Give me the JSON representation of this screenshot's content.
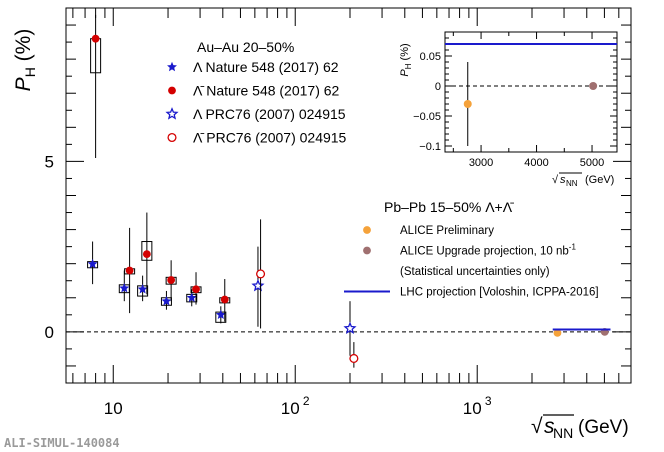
{
  "chart_data": {
    "type": "scatter",
    "x_scale": "log",
    "xlabel": "√s_NN (GeV)",
    "ylabel": "P_H (%)",
    "xlim": [
      5.5,
      7000
    ],
    "ylim": [
      -1.5,
      9.5
    ],
    "x_ticks": [
      {
        "value": 10,
        "label": "10"
      },
      {
        "value": 100,
        "label": "10",
        "sup": "2"
      },
      {
        "value": 1000,
        "label": "10",
        "sup": "3"
      }
    ],
    "y_ticks": [
      {
        "value": 0,
        "label": "0"
      },
      {
        "value": 5,
        "label": "5"
      }
    ],
    "zero_line": true,
    "legend_title": "Au–Au 20–50%",
    "legend_entries": [
      {
        "text": "Λ Nature 548 (2017) 62",
        "marker": "star-filled",
        "color": "#1a1acc"
      },
      {
        "text": "Λ̄ Nature 548 (2017) 62",
        "marker": "circle-filled",
        "color": "#d40000"
      },
      {
        "text": "Λ PRC76 (2007) 024915",
        "marker": "star-open",
        "color": "#1a1acc"
      },
      {
        "text": "Λ̄ PRC76 (2007) 024915",
        "marker": "circle-open",
        "color": "#d40000"
      }
    ],
    "legend2_title": "Pb–Pb 15–50% Λ+Λ̄",
    "legend2_entries": [
      {
        "text": "ALICE Preliminary",
        "marker": "circle-filled",
        "color": "#f5a23a"
      },
      {
        "text": "ALICE Upgrade projection, 10 nb",
        "sup": "-1",
        "marker": "circle-filled",
        "color": "#a07070"
      },
      {
        "text": "(Statistical uncertainties only)",
        "marker": "none"
      },
      {
        "text": "LHC projection [Voloshin, ICPPA-2016]",
        "marker": "line",
        "color": "#1a1acc"
      }
    ],
    "series": [
      {
        "name": "Λ Nature 548 (2017) 62",
        "marker": "star-filled",
        "color": "#1a1acc",
        "points": [
          {
            "x": 7.7,
            "y": 1.99,
            "lo": 1.4,
            "hi": 2.65,
            "syslo": 1.88,
            "syshi": 2.06
          },
          {
            "x": 11.5,
            "y": 1.28,
            "lo": 0.9,
            "hi": 1.8,
            "syslo": 1.15,
            "syshi": 1.38
          },
          {
            "x": 14.5,
            "y": 1.25,
            "lo": 0.9,
            "hi": 1.65,
            "syslo": 1.05,
            "syshi": 1.35
          },
          {
            "x": 19.6,
            "y": 0.9,
            "lo": 0.65,
            "hi": 1.2,
            "syslo": 0.78,
            "syshi": 1.0
          },
          {
            "x": 27,
            "y": 1.0,
            "lo": 0.75,
            "hi": 1.25,
            "syslo": 0.88,
            "syshi": 1.1
          },
          {
            "x": 39,
            "y": 0.5,
            "lo": 0.25,
            "hi": 0.75,
            "syslo": 0.28,
            "syshi": 0.58
          }
        ]
      },
      {
        "name": "Λ̄ Nature 548 (2017) 62",
        "marker": "circle-filled",
        "color": "#d40000",
        "points": [
          {
            "x": 8.0,
            "y": 8.6,
            "lo": 5.1,
            "hi": 9.3,
            "syslo": 7.6,
            "syshi": 8.6
          },
          {
            "x": 12.3,
            "y": 1.8,
            "lo": 0.55,
            "hi": 3.05,
            "syslo": 1.7,
            "syshi": 1.85
          },
          {
            "x": 15.3,
            "y": 2.28,
            "lo": 1.1,
            "hi": 3.5,
            "syslo": 2.1,
            "syshi": 2.65
          },
          {
            "x": 20.8,
            "y": 1.52,
            "lo": 0.9,
            "hi": 2.1,
            "syslo": 1.4,
            "syshi": 1.6
          },
          {
            "x": 28.5,
            "y": 1.25,
            "lo": 0.8,
            "hi": 1.75,
            "syslo": 1.15,
            "syshi": 1.32
          },
          {
            "x": 41,
            "y": 0.95,
            "lo": 0.3,
            "hi": 1.55,
            "syslo": 0.85,
            "syshi": 1.0
          }
        ]
      },
      {
        "name": "Λ PRC76 (2007) 024915",
        "marker": "star-open",
        "color": "#1a1acc",
        "points": [
          {
            "x": 62.4,
            "y": 1.35,
            "lo": 0.15,
            "hi": 2.5
          },
          {
            "x": 200,
            "y": 0.1,
            "lo": -0.7,
            "hi": 0.9
          }
        ]
      },
      {
        "name": "Λ̄ PRC76 (2007) 024915",
        "marker": "circle-open",
        "color": "#d40000",
        "points": [
          {
            "x": 64.5,
            "y": 1.7,
            "lo": 0.1,
            "hi": 3.3
          },
          {
            "x": 210,
            "y": -0.78,
            "lo": -1.05,
            "hi": -0.3
          }
        ]
      },
      {
        "name": "ALICE Preliminary",
        "marker": "circle-filled",
        "color": "#f5a23a",
        "points": [
          {
            "x": 2760,
            "y": -0.03
          }
        ]
      },
      {
        "name": "ALICE Upgrade projection",
        "marker": "circle-filled",
        "color": "#a07070",
        "points": [
          {
            "x": 5020,
            "y": 0.0
          }
        ]
      },
      {
        "name": "LHC projection [Voloshin, ICPPA-2016]",
        "marker": "line",
        "color": "#1a1acc",
        "segment": {
          "x1": 2600,
          "x2": 5400,
          "y": 0.07
        }
      }
    ],
    "inset": {
      "xlabel": "√s_NN (GeV)",
      "ylabel": "P_H (%)",
      "xlim": [
        2350,
        5450
      ],
      "ylim": [
        -0.11,
        0.09
      ],
      "x_ticks": [
        3000,
        4000,
        5000
      ],
      "y_ticks": [
        {
          "value": 0.05,
          "label": "0.05"
        },
        {
          "value": 0,
          "label": "0"
        },
        {
          "value": -0.05,
          "label": "−0.05"
        },
        {
          "value": -0.1,
          "label": "−0.1"
        }
      ],
      "points": [
        {
          "x": 2760,
          "y": -0.03,
          "lo": -0.1,
          "hi": 0.04,
          "color": "#f5a23a"
        },
        {
          "x": 5020,
          "y": 0.0,
          "lo": -0.003,
          "hi": 0.003,
          "color": "#a07070"
        }
      ],
      "line": {
        "y": 0.07,
        "color": "#1a1acc"
      }
    }
  },
  "watermark": "ALI-SIMUL-140084"
}
